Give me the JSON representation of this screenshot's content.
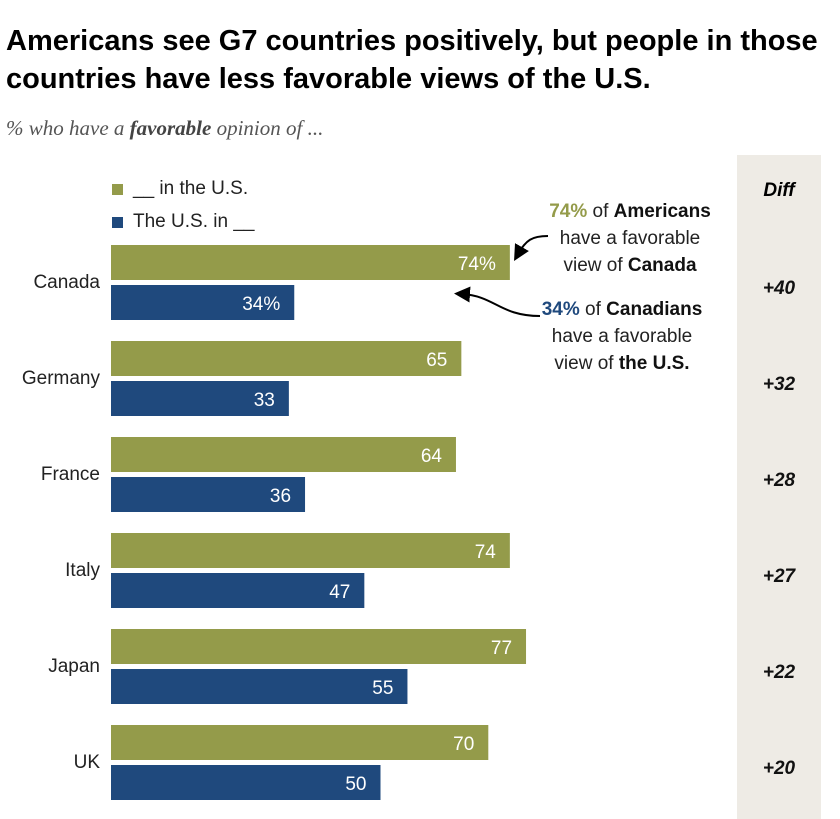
{
  "title": "Americans see G7 countries positively, but people in those countries have less favorable views of the U.S.",
  "subtitle": {
    "pre": "% who have a ",
    "bold": "favorable",
    "post": " opinion of ..."
  },
  "annotations": {
    "a1": {
      "pct": "74%",
      "t1": " of ",
      "b1": "Americans",
      "t2": "have a favorable",
      "t3": "view of ",
      "b2": "Canada"
    },
    "a2": {
      "pct": "34%",
      "t1": " of ",
      "b1": "Canadians",
      "t2": "have a favorable",
      "t3": "view of ",
      "b2": "the U.S."
    }
  },
  "colors": {
    "green": "#949b4a",
    "blue": "#1f497d"
  },
  "chart_data": {
    "type": "bar",
    "orientation": "horizontal",
    "categories": [
      "Canada",
      "Germany",
      "France",
      "Italy",
      "Japan",
      "UK"
    ],
    "series": [
      {
        "name": "__ in the U.S.",
        "values": [
          74,
          65,
          64,
          74,
          77,
          70
        ],
        "labels": [
          "74%",
          "65",
          "64",
          "74",
          "77",
          "70"
        ]
      },
      {
        "name": "The U.S. in __",
        "values": [
          34,
          33,
          36,
          47,
          55,
          50
        ],
        "labels": [
          "34%",
          "33",
          "36",
          "47",
          "55",
          "50"
        ]
      }
    ],
    "diff_header": "Diff",
    "diff": [
      "+40",
      "+32",
      "+28",
      "+27",
      "+22",
      "+20"
    ],
    "xlim": [
      0,
      100
    ],
    "legend": "top-left"
  }
}
